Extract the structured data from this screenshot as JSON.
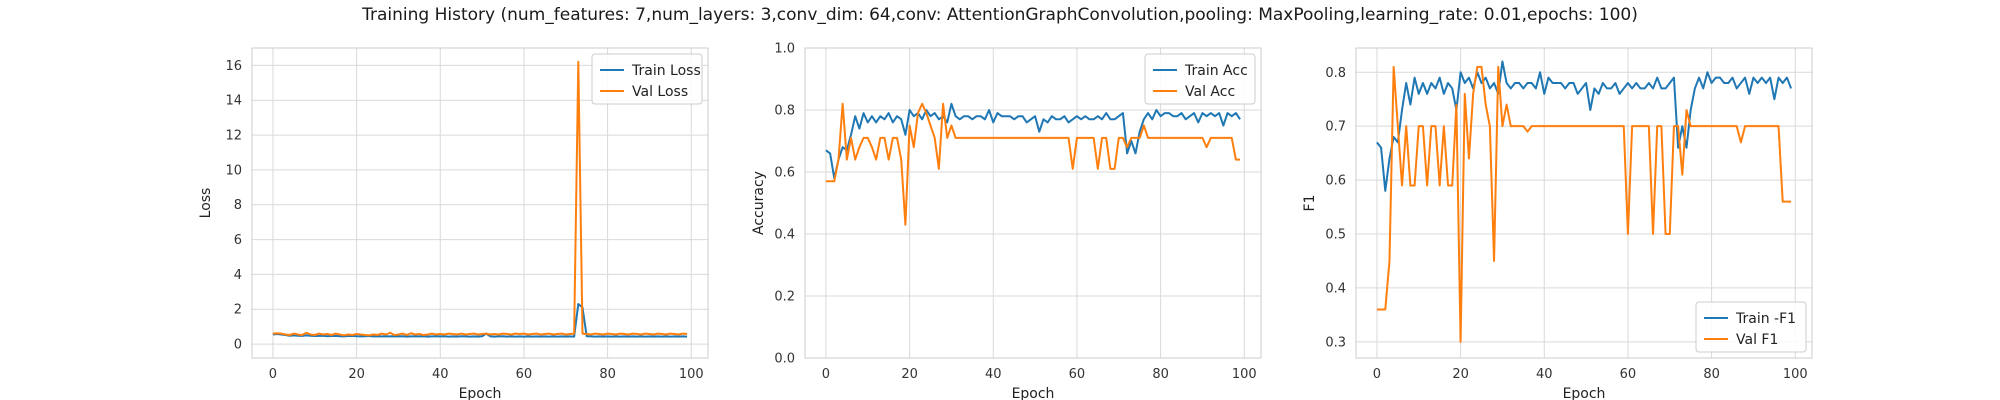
{
  "figure_title": "Training History (num_features: 7,num_layers: 3,conv_dim: 64,conv: AttentionGraphConvolution,pooling: MaxPooling,learning_rate: 0.01,epochs: 100)",
  "colors": {
    "train": "#1f77b4",
    "val": "#ff7f0e",
    "grid": "#d9d9d9",
    "axes": "#cccccc"
  },
  "chart_data": [
    {
      "type": "line",
      "xlabel": "Epoch",
      "ylabel": "Loss",
      "xlim": [
        -5,
        104
      ],
      "ylim": [
        -0.8,
        17
      ],
      "xticks": [
        0,
        20,
        40,
        60,
        80,
        100
      ],
      "yticks": [
        0,
        2,
        4,
        6,
        8,
        10,
        12,
        14,
        16
      ],
      "legend": "top-right",
      "series": [
        {
          "name": "Train Loss",
          "values": [
            0.55,
            0.58,
            0.55,
            0.52,
            0.48,
            0.5,
            0.48,
            0.47,
            0.5,
            0.48,
            0.46,
            0.47,
            0.48,
            0.45,
            0.46,
            0.47,
            0.45,
            0.44,
            0.46,
            0.47,
            0.45,
            0.44,
            0.45,
            0.46,
            0.44,
            0.45,
            0.44,
            0.45,
            0.44,
            0.45,
            0.44,
            0.45,
            0.43,
            0.44,
            0.45,
            0.44,
            0.45,
            0.43,
            0.44,
            0.45,
            0.44,
            0.45,
            0.43,
            0.44,
            0.43,
            0.45,
            0.44,
            0.43,
            0.44,
            0.43,
            0.45,
            0.6,
            0.44,
            0.43,
            0.44,
            0.45,
            0.43,
            0.44,
            0.43,
            0.44,
            0.43,
            0.44,
            0.43,
            0.44,
            0.43,
            0.44,
            0.43,
            0.44,
            0.43,
            0.44,
            0.43,
            0.44,
            0.43,
            2.3,
            2.1,
            0.45,
            0.44,
            0.43,
            0.44,
            0.43,
            0.44,
            0.43,
            0.44,
            0.43,
            0.44,
            0.43,
            0.44,
            0.43,
            0.44,
            0.43,
            0.44,
            0.43,
            0.44,
            0.43,
            0.44,
            0.43,
            0.44,
            0.43,
            0.44,
            0.43
          ]
        },
        {
          "name": "Val Loss",
          "values": [
            0.6,
            0.62,
            0.6,
            0.55,
            0.52,
            0.6,
            0.55,
            0.52,
            0.65,
            0.55,
            0.52,
            0.6,
            0.55,
            0.58,
            0.52,
            0.6,
            0.55,
            0.5,
            0.55,
            0.52,
            0.58,
            0.55,
            0.52,
            0.5,
            0.55,
            0.52,
            0.6,
            0.55,
            0.65,
            0.52,
            0.55,
            0.6,
            0.52,
            0.62,
            0.55,
            0.58,
            0.52,
            0.55,
            0.6,
            0.55,
            0.58,
            0.55,
            0.6,
            0.58,
            0.55,
            0.6,
            0.55,
            0.58,
            0.6,
            0.55,
            0.58,
            0.6,
            0.55,
            0.58,
            0.55,
            0.6,
            0.58,
            0.55,
            0.6,
            0.58,
            0.6,
            0.55,
            0.58,
            0.6,
            0.55,
            0.58,
            0.6,
            0.55,
            0.58,
            0.6,
            0.55,
            0.58,
            0.6,
            16.2,
            0.6,
            0.58,
            0.55,
            0.6,
            0.58,
            0.55,
            0.6,
            0.58,
            0.55,
            0.6,
            0.58,
            0.55,
            0.6,
            0.58,
            0.55,
            0.6,
            0.58,
            0.55,
            0.6,
            0.58,
            0.55,
            0.6,
            0.58,
            0.55,
            0.6,
            0.58
          ]
        }
      ]
    },
    {
      "type": "line",
      "xlabel": "Epoch",
      "ylabel": "Accuracy",
      "xlim": [
        -5,
        104
      ],
      "ylim": [
        0,
        1
      ],
      "xticks": [
        0,
        20,
        40,
        60,
        80,
        100
      ],
      "yticks": [
        0.0,
        0.2,
        0.4,
        0.6,
        0.8,
        1.0
      ],
      "legend": "top-right",
      "series": [
        {
          "name": "Train Acc",
          "values": [
            0.67,
            0.66,
            0.58,
            0.64,
            0.68,
            0.67,
            0.72,
            0.78,
            0.74,
            0.79,
            0.76,
            0.78,
            0.76,
            0.78,
            0.77,
            0.79,
            0.76,
            0.78,
            0.77,
            0.72,
            0.8,
            0.78,
            0.79,
            0.77,
            0.8,
            0.78,
            0.79,
            0.77,
            0.78,
            0.76,
            0.82,
            0.78,
            0.77,
            0.78,
            0.78,
            0.77,
            0.78,
            0.78,
            0.77,
            0.8,
            0.76,
            0.79,
            0.78,
            0.78,
            0.78,
            0.77,
            0.78,
            0.78,
            0.76,
            0.77,
            0.78,
            0.73,
            0.77,
            0.76,
            0.78,
            0.77,
            0.77,
            0.78,
            0.76,
            0.77,
            0.78,
            0.77,
            0.78,
            0.77,
            0.77,
            0.78,
            0.77,
            0.79,
            0.77,
            0.77,
            0.78,
            0.79,
            0.66,
            0.7,
            0.66,
            0.73,
            0.77,
            0.79,
            0.77,
            0.8,
            0.78,
            0.79,
            0.79,
            0.78,
            0.78,
            0.79,
            0.77,
            0.78,
            0.79,
            0.76,
            0.79,
            0.78,
            0.79,
            0.78,
            0.79,
            0.75,
            0.79,
            0.78,
            0.79,
            0.77
          ]
        },
        {
          "name": "Val Acc",
          "values": [
            0.57,
            0.57,
            0.57,
            0.64,
            0.82,
            0.64,
            0.71,
            0.64,
            0.68,
            0.71,
            0.71,
            0.68,
            0.64,
            0.71,
            0.71,
            0.64,
            0.71,
            0.71,
            0.64,
            0.43,
            0.75,
            0.68,
            0.79,
            0.82,
            0.79,
            0.75,
            0.71,
            0.61,
            0.82,
            0.71,
            0.75,
            0.71,
            0.71,
            0.71,
            0.71,
            0.71,
            0.71,
            0.71,
            0.71,
            0.71,
            0.71,
            0.71,
            0.71,
            0.71,
            0.71,
            0.71,
            0.71,
            0.71,
            0.71,
            0.71,
            0.71,
            0.71,
            0.71,
            0.71,
            0.71,
            0.71,
            0.71,
            0.71,
            0.71,
            0.61,
            0.71,
            0.71,
            0.71,
            0.71,
            0.71,
            0.61,
            0.71,
            0.71,
            0.61,
            0.61,
            0.71,
            0.71,
            0.68,
            0.71,
            0.71,
            0.71,
            0.75,
            0.71,
            0.71,
            0.71,
            0.71,
            0.71,
            0.71,
            0.71,
            0.71,
            0.71,
            0.71,
            0.71,
            0.71,
            0.71,
            0.71,
            0.68,
            0.71,
            0.71,
            0.71,
            0.71,
            0.71,
            0.71,
            0.64,
            0.64
          ]
        }
      ]
    },
    {
      "type": "line",
      "xlabel": "Epoch",
      "ylabel": "F1",
      "xlim": [
        -5,
        104
      ],
      "ylim": [
        0.27,
        0.845
      ],
      "xticks": [
        0,
        20,
        40,
        60,
        80,
        100
      ],
      "yticks": [
        0.3,
        0.4,
        0.5,
        0.6,
        0.7,
        0.8
      ],
      "legend": "bottom-right",
      "series": [
        {
          "name": "Train -F1",
          "values": [
            0.67,
            0.66,
            0.58,
            0.64,
            0.68,
            0.67,
            0.73,
            0.78,
            0.74,
            0.79,
            0.76,
            0.78,
            0.76,
            0.78,
            0.77,
            0.79,
            0.76,
            0.78,
            0.77,
            0.73,
            0.8,
            0.78,
            0.79,
            0.77,
            0.8,
            0.78,
            0.79,
            0.77,
            0.78,
            0.76,
            0.82,
            0.78,
            0.77,
            0.78,
            0.78,
            0.77,
            0.78,
            0.78,
            0.77,
            0.8,
            0.76,
            0.79,
            0.78,
            0.78,
            0.78,
            0.77,
            0.78,
            0.78,
            0.76,
            0.77,
            0.78,
            0.73,
            0.77,
            0.76,
            0.78,
            0.77,
            0.77,
            0.78,
            0.76,
            0.77,
            0.78,
            0.77,
            0.78,
            0.77,
            0.77,
            0.78,
            0.77,
            0.79,
            0.77,
            0.77,
            0.78,
            0.79,
            0.66,
            0.7,
            0.66,
            0.73,
            0.77,
            0.79,
            0.77,
            0.8,
            0.78,
            0.79,
            0.79,
            0.78,
            0.78,
            0.79,
            0.77,
            0.78,
            0.79,
            0.76,
            0.79,
            0.78,
            0.79,
            0.78,
            0.79,
            0.75,
            0.79,
            0.78,
            0.79,
            0.77
          ]
        },
        {
          "name": "Val F1",
          "values": [
            0.36,
            0.36,
            0.36,
            0.45,
            0.81,
            0.7,
            0.59,
            0.7,
            0.59,
            0.59,
            0.7,
            0.7,
            0.59,
            0.7,
            0.7,
            0.59,
            0.7,
            0.59,
            0.59,
            0.74,
            0.3,
            0.76,
            0.64,
            0.76,
            0.81,
            0.81,
            0.74,
            0.7,
            0.45,
            0.81,
            0.7,
            0.74,
            0.7,
            0.7,
            0.7,
            0.7,
            0.69,
            0.7,
            0.7,
            0.7,
            0.7,
            0.7,
            0.7,
            0.7,
            0.7,
            0.7,
            0.7,
            0.7,
            0.7,
            0.7,
            0.7,
            0.7,
            0.7,
            0.7,
            0.7,
            0.7,
            0.7,
            0.7,
            0.7,
            0.7,
            0.5,
            0.7,
            0.7,
            0.7,
            0.7,
            0.7,
            0.5,
            0.7,
            0.7,
            0.5,
            0.5,
            0.7,
            0.7,
            0.61,
            0.73,
            0.7,
            0.7,
            0.7,
            0.7,
            0.7,
            0.7,
            0.7,
            0.7,
            0.7,
            0.7,
            0.7,
            0.7,
            0.67,
            0.7,
            0.7,
            0.7,
            0.7,
            0.7,
            0.7,
            0.7,
            0.7,
            0.7,
            0.56,
            0.56,
            0.56
          ]
        }
      ]
    }
  ]
}
